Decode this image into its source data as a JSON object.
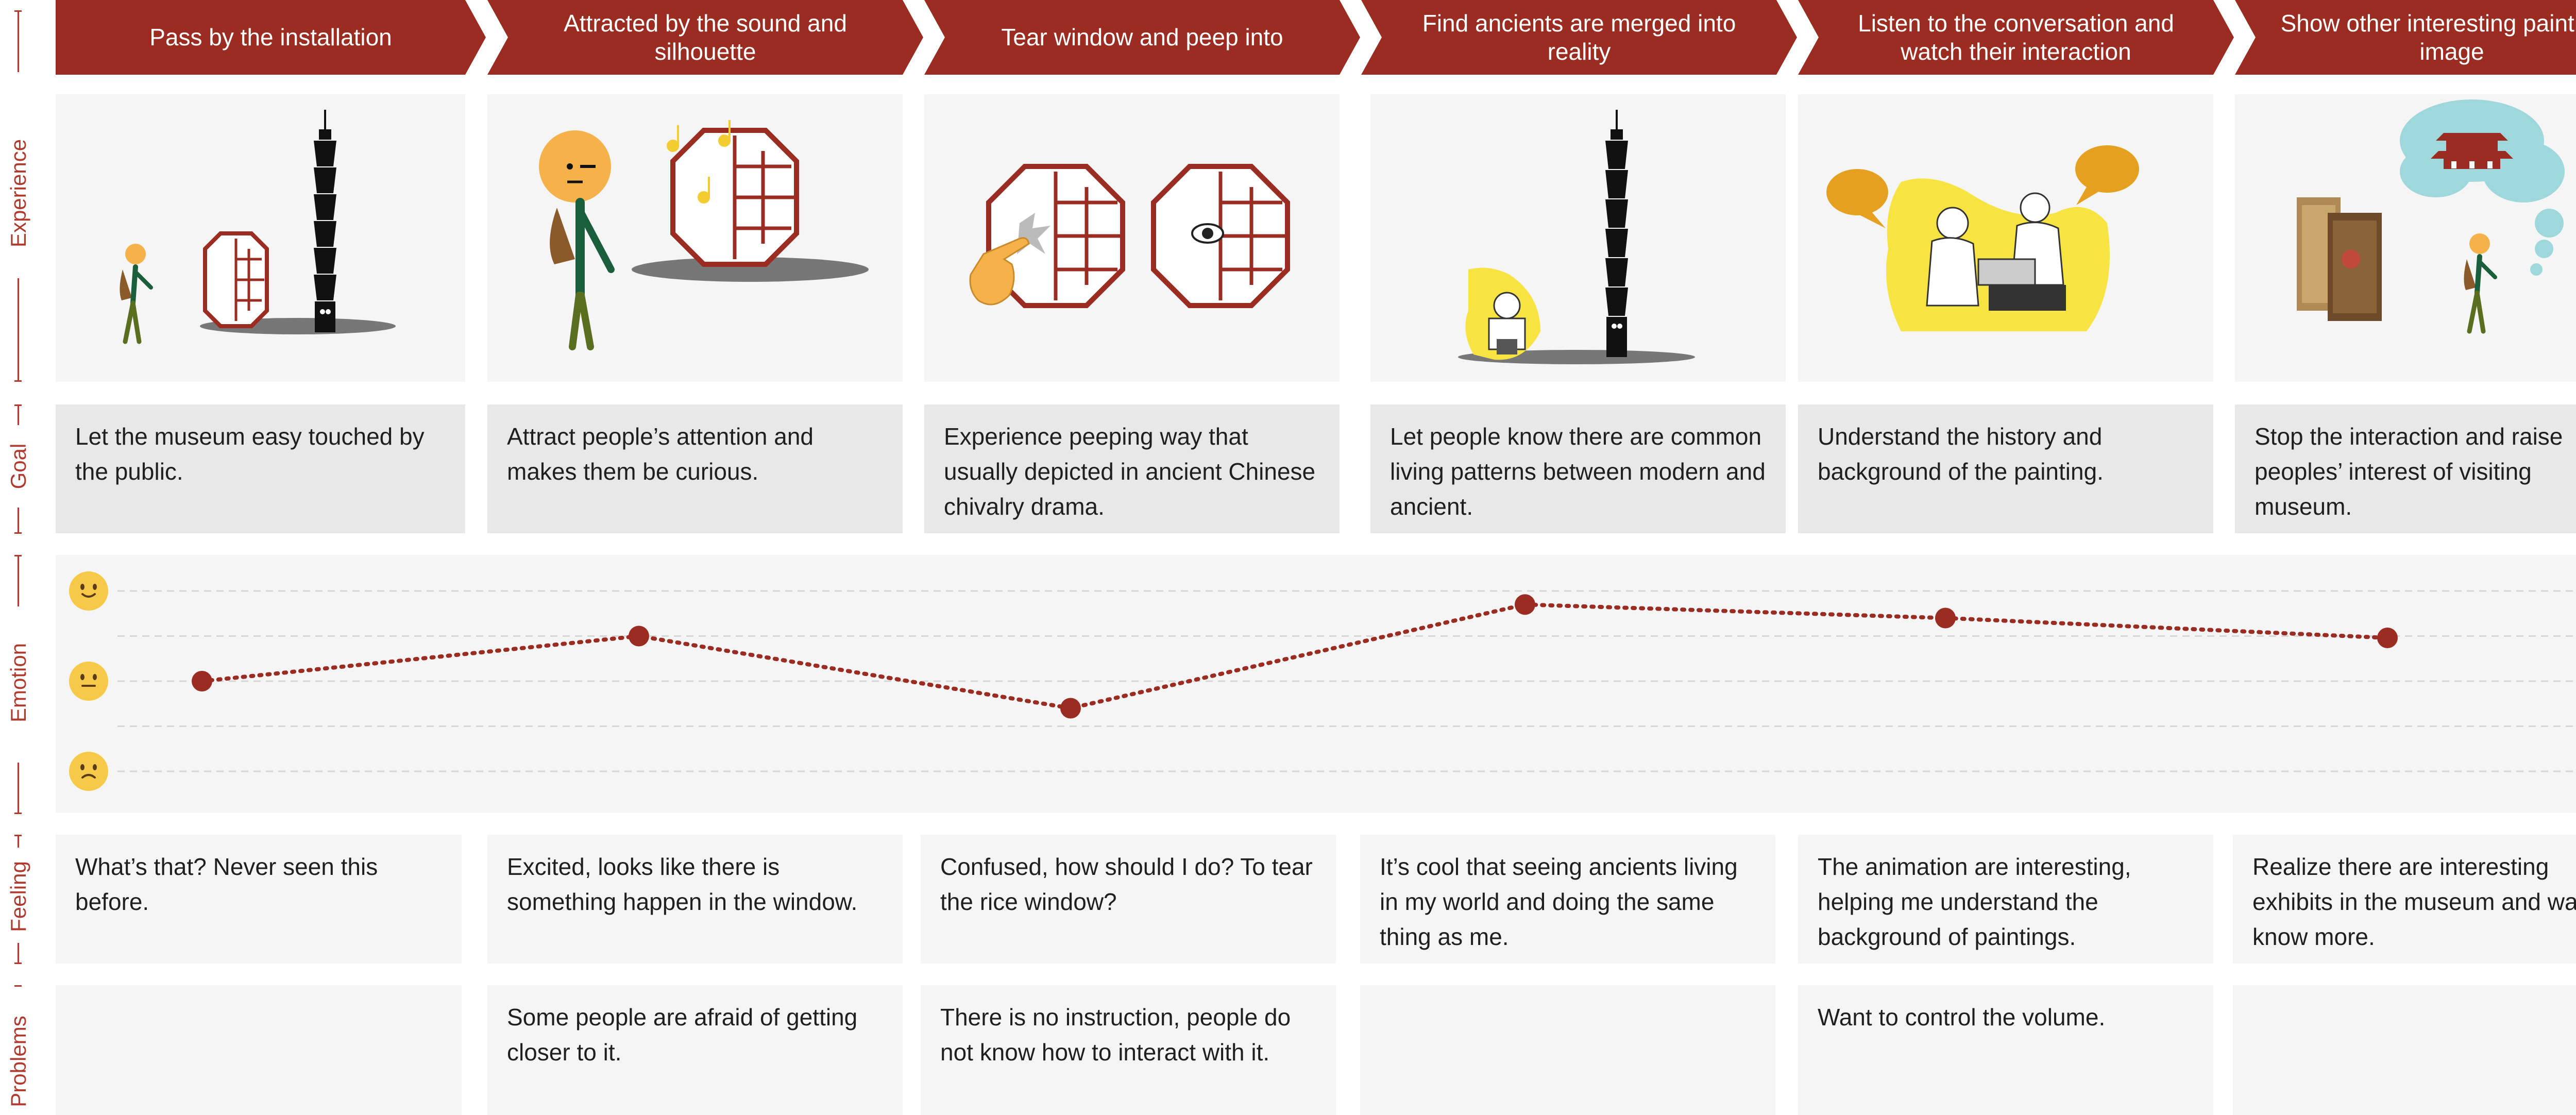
{
  "axis": {
    "experience": "Experience",
    "goal": "Goal",
    "emotion": "Emotion",
    "feeling": "Feeling",
    "problems": "Problems"
  },
  "stages": [
    {
      "title": "Pass by the installation"
    },
    {
      "title": "Attracted by the sound and silhouette"
    },
    {
      "title": "Tear window and peep into"
    },
    {
      "title": "Find ancients are merged into reality"
    },
    {
      "title": "Listen to the conversation and watch their interaction"
    },
    {
      "title": "Show other interesting paintings’ image"
    }
  ],
  "goals": [
    "Let the museum easy touched by the public.",
    "Attract people’s attention and makes them be curious.",
    "Experience peeping way that usually depicted in ancient Chinese chivalry drama.",
    "Let people know there are common living patterns between modern and ancient.",
    "Understand the history and background of the painting.",
    "Stop the interaction and raise peoples’ interest of visiting museum."
  ],
  "feelings": [
    "What’s that? Never seen this before.",
    "Excited, looks like there is something happen in the window.",
    "Confused, how should I do? To tear the rice window?",
    "It’s cool that seeing ancients living in my world and doing the same thing as me.",
    "The animation are interesting, helping me understand the background of paintings.",
    "Realize there are interesting exhibits in the museum and want to know more."
  ],
  "problems": [
    "",
    "Some people are afraid of getting closer to it.",
    "There is no instruction, people do not know how to interact with it.",
    "",
    "Want to control the volume.",
    ""
  ],
  "chart_data": {
    "type": "line",
    "categories": [
      "Pass by the installation",
      "Attracted by the sound and silhouette",
      "Tear window and peep into",
      "Find ancients are merged into reality",
      "Listen to the conversation and watch their interaction",
      "Show other interesting paintings’ image"
    ],
    "values": [
      0,
      0.5,
      -0.3,
      0.85,
      0.7,
      0.48
    ],
    "ylim": [
      -1,
      1
    ],
    "levels": [
      "happy-face-icon",
      "neutral-face-icon",
      "sad-face-icon"
    ],
    "grid": true
  },
  "colors": {
    "accent": "#9b2c21",
    "axis": "#b03a2e",
    "emoji": "#f7c948",
    "card": "#f5f5f5",
    "goal_card": "#e8e8e8",
    "highlight": "#f7e442",
    "thought": "#9fd8dc",
    "speech": "#e5a020"
  },
  "icons": [
    "walking-person-icon",
    "taipei-101-tower-icon",
    "lattice-window-icon",
    "music-notes-icon",
    "peeping-eye-icon",
    "pointing-hand-icon",
    "speech-bubble-icon",
    "thought-bubble-icon",
    "temple-icon",
    "painting-icon"
  ]
}
